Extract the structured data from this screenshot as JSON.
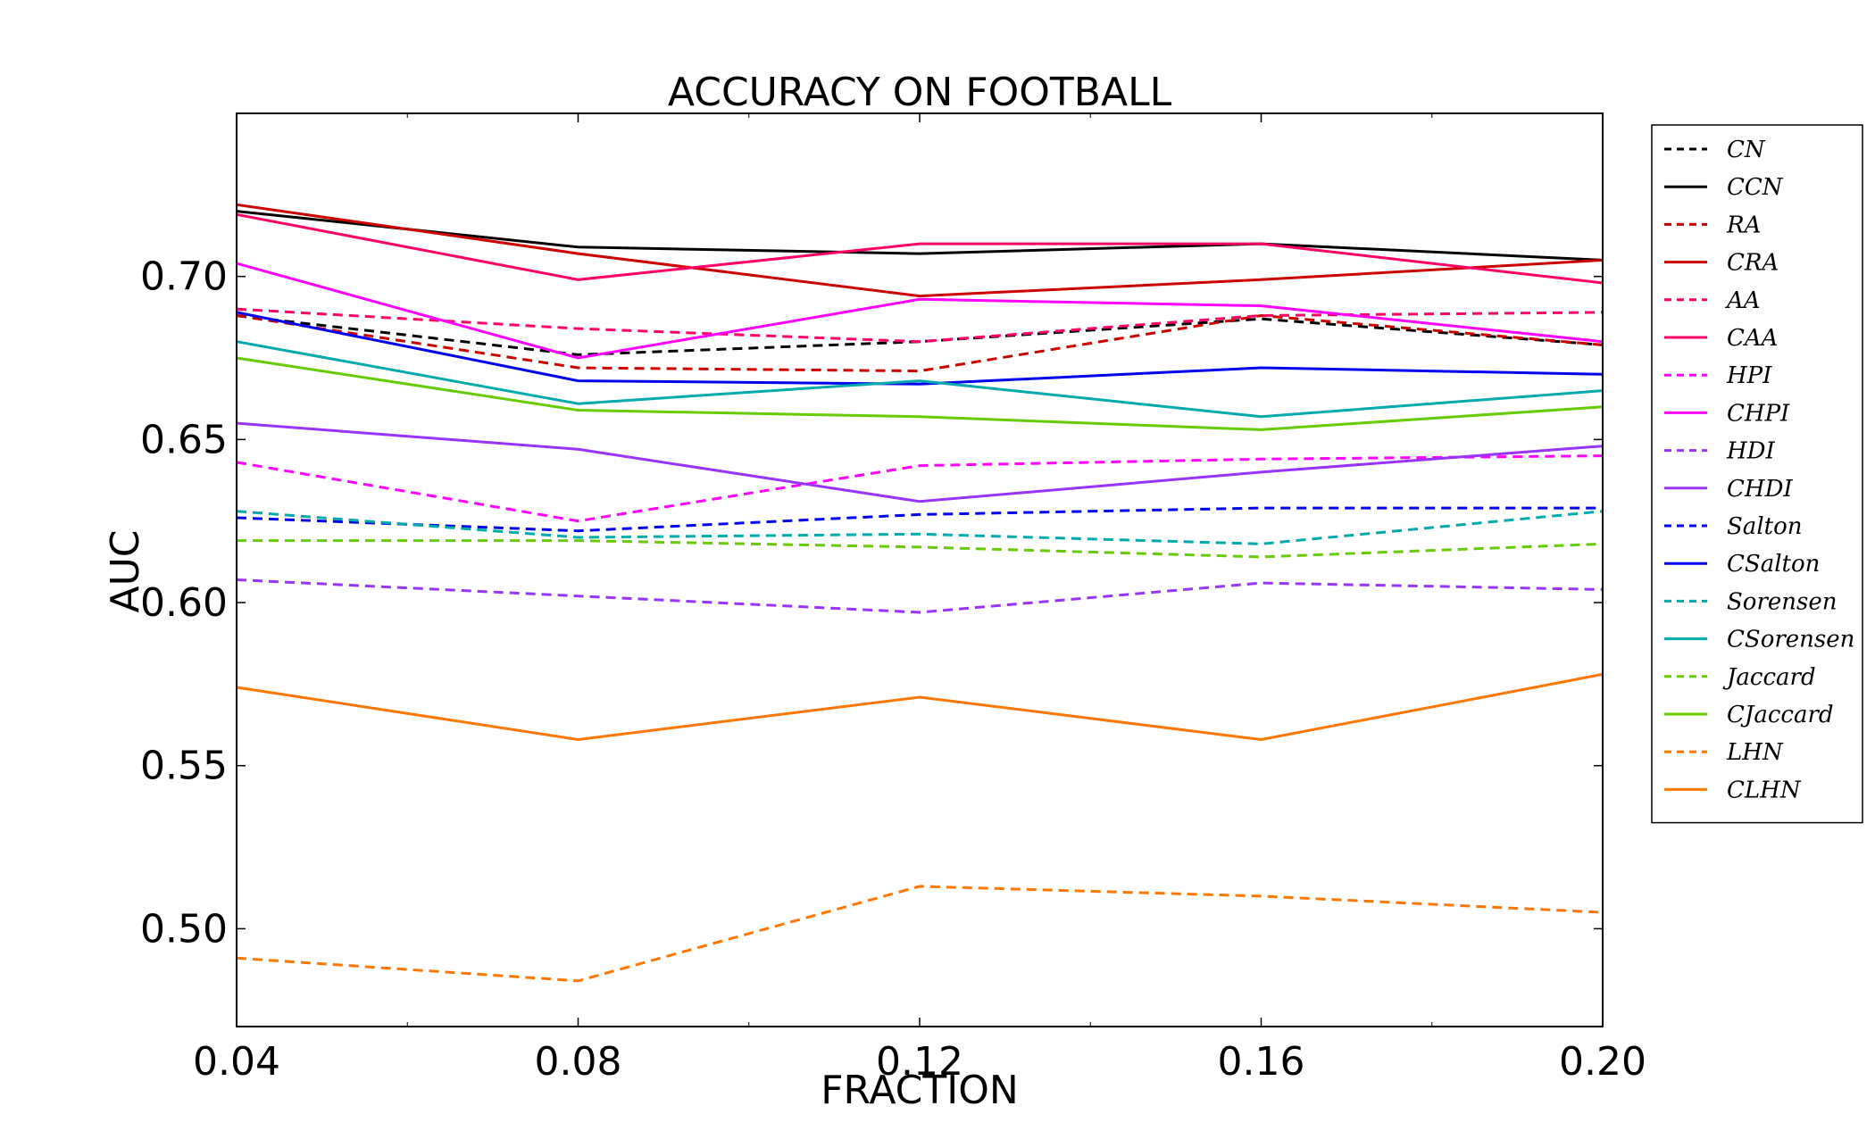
{
  "chart_data": {
    "type": "line",
    "title": "ACCURACY ON FOOTBALL",
    "xlabel": "FRACTION",
    "ylabel": "AUC",
    "x": [
      0.04,
      0.08,
      0.12,
      0.16,
      0.2
    ],
    "x_tick_labels": [
      "0.04",
      "0.08",
      "0.12",
      "0.16",
      "0.20"
    ],
    "y_ticks": [
      0.5,
      0.55,
      0.6,
      0.65,
      0.7
    ],
    "y_tick_labels": [
      "0.50",
      "0.55",
      "0.60",
      "0.65",
      "0.70"
    ],
    "xlim": [
      0.04,
      0.2
    ],
    "ylim": [
      0.47,
      0.75
    ],
    "grid": false,
    "legend_position": "outside-right",
    "series": [
      {
        "name": "CN",
        "style": "dashed",
        "color": "#000000",
        "values": [
          0.688,
          0.676,
          0.68,
          0.687,
          0.679
        ]
      },
      {
        "name": "CCN",
        "style": "solid",
        "color": "#000000",
        "values": [
          0.72,
          0.709,
          0.707,
          0.71,
          0.705
        ]
      },
      {
        "name": "RA",
        "style": "dashed",
        "color": "#cc0000",
        "values": [
          0.688,
          0.672,
          0.671,
          0.688,
          0.679
        ]
      },
      {
        "name": "CRA",
        "style": "solid",
        "color": "#cc0000",
        "values": [
          0.722,
          0.707,
          0.694,
          0.699,
          0.705
        ]
      },
      {
        "name": "AA",
        "style": "dashed",
        "color": "#ff0066",
        "values": [
          0.69,
          0.684,
          0.68,
          0.688,
          0.689
        ]
      },
      {
        "name": "CAA",
        "style": "solid",
        "color": "#ff0066",
        "values": [
          0.719,
          0.699,
          0.71,
          0.71,
          0.698
        ]
      },
      {
        "name": "HPI",
        "style": "dashed",
        "color": "#ff00ff",
        "values": [
          0.643,
          0.625,
          0.642,
          0.644,
          0.645
        ]
      },
      {
        "name": "CHPI",
        "style": "solid",
        "color": "#ff00ff",
        "values": [
          0.704,
          0.675,
          0.693,
          0.691,
          0.68
        ]
      },
      {
        "name": "HDI",
        "style": "dashed",
        "color": "#9933ff",
        "values": [
          0.607,
          0.602,
          0.597,
          0.606,
          0.604
        ]
      },
      {
        "name": "CHDI",
        "style": "solid",
        "color": "#9933ff",
        "values": [
          0.655,
          0.647,
          0.631,
          0.64,
          0.648
        ]
      },
      {
        "name": "Salton",
        "style": "dashed",
        "color": "#0000ee",
        "values": [
          0.626,
          0.622,
          0.627,
          0.629,
          0.629
        ]
      },
      {
        "name": "CSalton",
        "style": "solid",
        "color": "#0000ee",
        "values": [
          0.689,
          0.668,
          0.667,
          0.672,
          0.67
        ]
      },
      {
        "name": "Sorensen",
        "style": "dashed",
        "color": "#00aaaa",
        "values": [
          0.628,
          0.62,
          0.621,
          0.618,
          0.628
        ]
      },
      {
        "name": "CSorensen",
        "style": "solid",
        "color": "#00aaaa",
        "values": [
          0.68,
          0.661,
          0.668,
          0.657,
          0.665
        ]
      },
      {
        "name": "Jaccard",
        "style": "dashed",
        "color": "#66cc00",
        "values": [
          0.619,
          0.619,
          0.617,
          0.614,
          0.618
        ]
      },
      {
        "name": "CJaccard",
        "style": "solid",
        "color": "#66cc00",
        "values": [
          0.675,
          0.659,
          0.657,
          0.653,
          0.66
        ]
      },
      {
        "name": "LHN",
        "style": "dashed",
        "color": "#ff7700",
        "values": [
          0.491,
          0.484,
          0.513,
          0.51,
          0.505
        ]
      },
      {
        "name": "CLHN",
        "style": "solid",
        "color": "#ff7700",
        "values": [
          0.574,
          0.558,
          0.571,
          0.558,
          0.578
        ]
      }
    ]
  }
}
